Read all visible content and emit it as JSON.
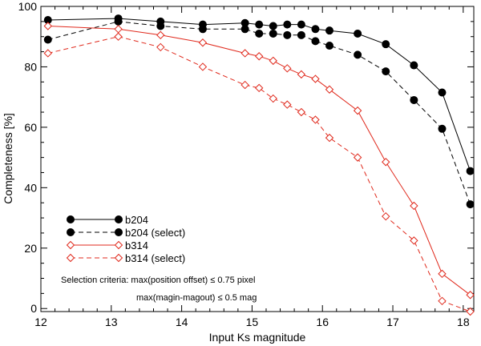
{
  "chart_data": {
    "type": "line",
    "xlabel": "Input Ks magnitude",
    "ylabel": "Completeness [%]",
    "xlim": [
      12,
      18.15
    ],
    "ylim": [
      -1,
      100
    ],
    "xticks": [
      12,
      13,
      14,
      15,
      16,
      17,
      18
    ],
    "yticks": [
      0,
      20,
      40,
      60,
      80,
      100
    ],
    "grid": false,
    "legend_position": "bottom-left",
    "series": [
      {
        "name": "b204",
        "color": "#000000",
        "line": "solid",
        "marker": "filled-circle",
        "x": [
          12.1,
          13.1,
          13.7,
          14.3,
          14.9,
          15.1,
          15.3,
          15.5,
          15.7,
          15.9,
          16.1,
          16.5,
          16.9,
          17.3,
          17.7,
          18.1
        ],
        "y": [
          95.5,
          96,
          95,
          94,
          94.5,
          94,
          93.5,
          94,
          94,
          92.5,
          92,
          91,
          87.5,
          80.5,
          71.5,
          45.5
        ]
      },
      {
        "name": "b204 (select)",
        "color": "#000000",
        "line": "dashed",
        "marker": "filled-circle",
        "x": [
          12.1,
          13.1,
          13.7,
          14.3,
          14.9,
          15.1,
          15.3,
          15.5,
          15.7,
          15.9,
          16.1,
          16.5,
          16.9,
          17.3,
          17.7,
          18.1
        ],
        "y": [
          89,
          95,
          93.5,
          92.5,
          92.5,
          91,
          91,
          90.5,
          90.5,
          88.5,
          87,
          84,
          78.5,
          69,
          59.5,
          34.5
        ]
      },
      {
        "name": "b314",
        "color": "#e0291c",
        "line": "solid",
        "marker": "open-diamond",
        "x": [
          12.1,
          13.1,
          13.7,
          14.3,
          14.9,
          15.1,
          15.3,
          15.5,
          15.7,
          15.9,
          16.1,
          16.5,
          16.9,
          17.3,
          17.7,
          18.1
        ],
        "y": [
          93.5,
          92.5,
          90.5,
          88,
          84.5,
          83.5,
          82,
          79.5,
          77.5,
          76,
          72.5,
          65.5,
          48.5,
          34,
          11.5,
          4.5
        ]
      },
      {
        "name": "b314 (select)",
        "color": "#e0291c",
        "line": "dashed",
        "marker": "open-diamond",
        "x": [
          12.1,
          13.1,
          13.7,
          14.3,
          14.9,
          15.1,
          15.3,
          15.5,
          15.7,
          15.9,
          16.1,
          16.5,
          16.9,
          17.3,
          17.7,
          18.1
        ],
        "y": [
          84.5,
          90,
          86.5,
          80,
          74,
          73,
          69.5,
          67.5,
          65,
          62.5,
          56.5,
          50,
          30.5,
          22.5,
          2.5,
          -1
        ]
      }
    ],
    "annotations": [
      "Selection criteria: max(position offset) ≤ 0.75 pixel",
      "max(magin-magout) ≤ 0.5 mag"
    ]
  }
}
